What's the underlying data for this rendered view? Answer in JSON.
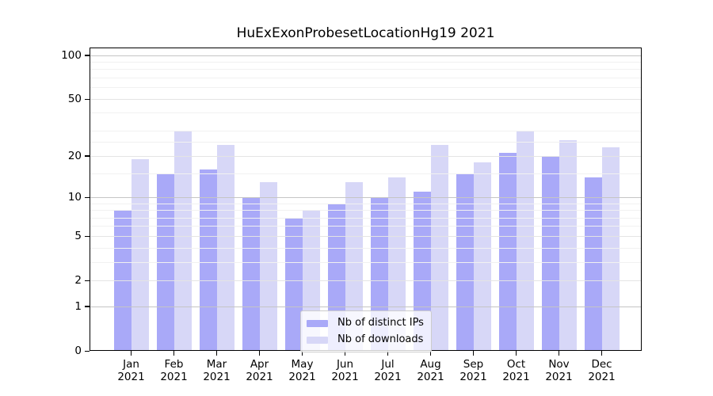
{
  "title": "HuExExonProbesetLocationHg19 2021",
  "legend": {
    "items": [
      {
        "label": "Nb of distinct IPs",
        "color": "#a9a9f8"
      },
      {
        "label": "Nb of downloads",
        "color": "#d7d7f7"
      }
    ]
  },
  "chart_data": {
    "type": "bar",
    "title": "HuExExonProbesetLocationHg19 2021",
    "categories": [
      "Jan 2021",
      "Feb 2021",
      "Mar 2021",
      "Apr 2021",
      "May 2021",
      "Jun 2021",
      "Jul 2021",
      "Aug 2021",
      "Sep 2021",
      "Oct 2021",
      "Nov 2021",
      "Dec 2021"
    ],
    "series": [
      {
        "name": "Nb of distinct IPs",
        "color": "#a9a9f8",
        "values": [
          8,
          15,
          16,
          10,
          7,
          9,
          10,
          11,
          15,
          21,
          20,
          14
        ]
      },
      {
        "name": "Nb of downloads",
        "color": "#d7d7f7",
        "values": [
          19,
          30,
          24,
          13,
          8,
          13,
          14,
          24,
          18,
          30,
          26,
          23
        ]
      }
    ],
    "xlabel": "",
    "ylabel": "",
    "yscale": "log1p",
    "ylim": [
      0,
      112
    ],
    "yticks": [
      0,
      1,
      2,
      5,
      10,
      20,
      50,
      100
    ],
    "yticks_minor": [
      3,
      4,
      6,
      7,
      8,
      9,
      15,
      25,
      30,
      40,
      60,
      70,
      80,
      90
    ],
    "grid": true,
    "legend_position": "lower center",
    "grid_colors": {
      "decade": "#c5c5c5",
      "major": "#e4e4e4",
      "minor": "#f1f1f1"
    }
  }
}
